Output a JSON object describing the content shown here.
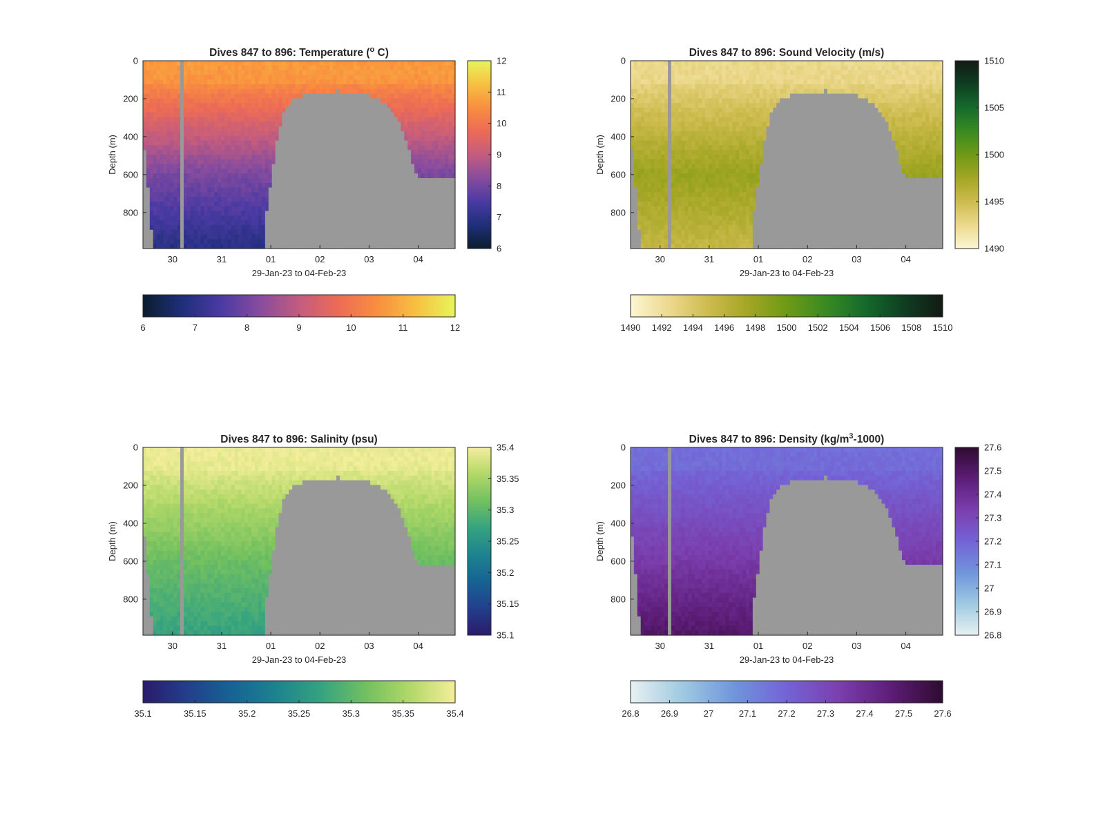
{
  "chart_data": [
    {
      "type": "heatmap",
      "title": "Dives 847 to 896: Temperature (",
      "title_sup": "o",
      "title_tail": " C)",
      "xlabel": "29-Jan-23 to 04-Feb-23",
      "ylabel": "Depth (m)",
      "xticks": [
        "30",
        "31",
        "01",
        "02",
        "03",
        "04"
      ],
      "yticks": [
        0,
        200,
        400,
        600,
        800
      ],
      "ylim": [
        0,
        990
      ],
      "x_range_days": [
        29.4,
        35.75
      ],
      "colormap": [
        "#0b1d2e",
        "#1f2f7a",
        "#4a3aa3",
        "#874c9e",
        "#c35c7f",
        "#ec6b56",
        "#f98e3f",
        "#f7c042",
        "#e8f55a"
      ],
      "clim": [
        6,
        12
      ],
      "vertical_colorbar_ticks": [
        "12",
        "11",
        "10",
        "9",
        "8",
        "7",
        "6"
      ],
      "horizontal_colorbar_ticks": [
        "6",
        "7",
        "8",
        "9",
        "10",
        "11",
        "12"
      ],
      "profile": {
        "surface": 10.7,
        "deep": 8.1,
        "bottom": 6.9
      }
    },
    {
      "type": "heatmap",
      "title": "Dives 847 to 896: Sound Velocity (m/s)",
      "xlabel": "29-Jan-23 to 04-Feb-23",
      "ylabel": "Depth (m)",
      "xticks": [
        "30",
        "31",
        "01",
        "02",
        "03",
        "04"
      ],
      "yticks": [
        0,
        200,
        400,
        600,
        800
      ],
      "ylim": [
        0,
        990
      ],
      "x_range_days": [
        29.4,
        35.75
      ],
      "colormap": [
        "#fbf6d3",
        "#ecd98d",
        "#cdbb4e",
        "#a3a624",
        "#6e9a16",
        "#3a8a22",
        "#156b2c",
        "#0f3f22",
        "#121a14"
      ],
      "clim": [
        1490,
        1510
      ],
      "vertical_colorbar_ticks": [
        "1510",
        "1505",
        "1500",
        "1495",
        "1490"
      ],
      "horizontal_colorbar_ticks": [
        "1490",
        "1492",
        "1494",
        "1496",
        "1498",
        "1500",
        "1502",
        "1504",
        "1506",
        "1508",
        "1510"
      ],
      "profile": {
        "surface": 1492.5,
        "deep": 1498.0,
        "bottom": 1495.5
      }
    },
    {
      "type": "heatmap",
      "title": "Dives 847 to 896: Salinity (psu)",
      "xlabel": "29-Jan-23 to 04-Feb-23",
      "ylabel": "Depth (m)",
      "xticks": [
        "30",
        "31",
        "01",
        "02",
        "03",
        "04"
      ],
      "yticks": [
        0,
        200,
        400,
        600,
        800
      ],
      "ylim": [
        0,
        990
      ],
      "x_range_days": [
        29.4,
        35.75
      ],
      "colormap": [
        "#2a1b6b",
        "#223f8c",
        "#166394",
        "#1d838f",
        "#35a380",
        "#72c060",
        "#b2d868",
        "#f4ee9a"
      ],
      "clim": [
        35.1,
        35.4
      ],
      "vertical_colorbar_ticks": [
        "35.4",
        "35.35",
        "35.3",
        "35.25",
        "35.2",
        "35.15",
        "35.1"
      ],
      "horizontal_colorbar_ticks": [
        "35.1",
        "35.15",
        "35.2",
        "35.25",
        "35.3",
        "35.35",
        "35.4"
      ],
      "profile": {
        "surface": 35.395,
        "deep": 35.31,
        "bottom": 35.27
      }
    },
    {
      "type": "heatmap",
      "title": "Dives 847 to 896: Density (kg/m",
      "title_sup": "3",
      "title_tail": "-1000)",
      "xlabel": "29-Jan-23 to 04-Feb-23",
      "ylabel": "Depth (m)",
      "xticks": [
        "30",
        "31",
        "01",
        "02",
        "03",
        "04"
      ],
      "yticks": [
        0,
        200,
        400,
        600,
        800
      ],
      "ylim": [
        0,
        990
      ],
      "x_range_days": [
        29.4,
        35.75
      ],
      "colormap": [
        "#e7f1f1",
        "#9fc9e2",
        "#6f95dc",
        "#7463d6",
        "#7b3fae",
        "#5d1d78",
        "#2f0b30"
      ],
      "clim": [
        26.8,
        27.6
      ],
      "vertical_colorbar_ticks": [
        "27.6",
        "27.5",
        "27.4",
        "27.3",
        "27.2",
        "27.1",
        "27",
        "26.9",
        "26.8"
      ],
      "horizontal_colorbar_ticks": [
        "26.8",
        "26.9",
        "27",
        "27.1",
        "27.2",
        "27.3",
        "27.4",
        "27.5",
        "27.6"
      ],
      "profile": {
        "surface": 27.17,
        "deep": 27.35,
        "bottom": 27.5
      }
    }
  ],
  "bathymetry_mask_color": "#999999",
  "data_gap_days": [
    30.15,
    30.26
  ]
}
